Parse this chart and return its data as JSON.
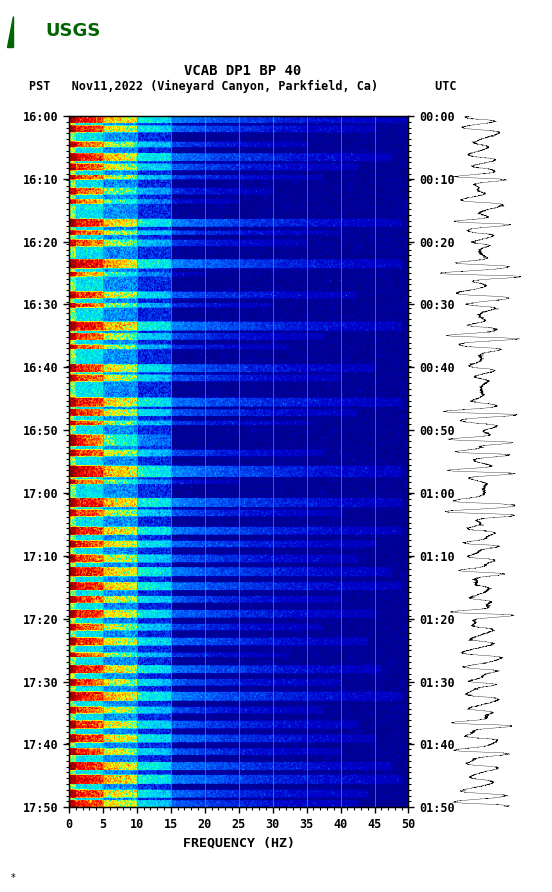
{
  "title_line1": "VCAB DP1 BP 40",
  "title_line2": "PST   Nov11,2022 (Vineyard Canyon, Parkfield, Ca)        UTC",
  "xlabel": "FREQUENCY (HZ)",
  "freq_min": 0,
  "freq_max": 50,
  "ytick_labels_left": [
    "16:00",
    "16:10",
    "16:20",
    "16:30",
    "16:40",
    "16:50",
    "17:00",
    "17:10",
    "17:20",
    "17:30",
    "17:40",
    "17:50"
  ],
  "ytick_labels_right": [
    "00:00",
    "00:10",
    "00:20",
    "00:30",
    "00:40",
    "00:50",
    "01:00",
    "01:10",
    "01:20",
    "01:30",
    "01:40",
    "01:50"
  ],
  "xticks": [
    0,
    5,
    10,
    15,
    20,
    25,
    30,
    35,
    40,
    45,
    50
  ],
  "grid_freqs": [
    5,
    10,
    15,
    20,
    25,
    30,
    35,
    40,
    45
  ],
  "background_color": "#ffffff",
  "fig_width": 5.52,
  "fig_height": 8.92,
  "colormap_nodes": [
    [
      0.0,
      "#000080"
    ],
    [
      0.12,
      "#0000CD"
    ],
    [
      0.25,
      "#0066FF"
    ],
    [
      0.38,
      "#00CCFF"
    ],
    [
      0.5,
      "#00FFCC"
    ],
    [
      0.6,
      "#FFFF00"
    ],
    [
      0.72,
      "#FF8800"
    ],
    [
      0.84,
      "#FF0000"
    ],
    [
      1.0,
      "#8B0000"
    ]
  ]
}
